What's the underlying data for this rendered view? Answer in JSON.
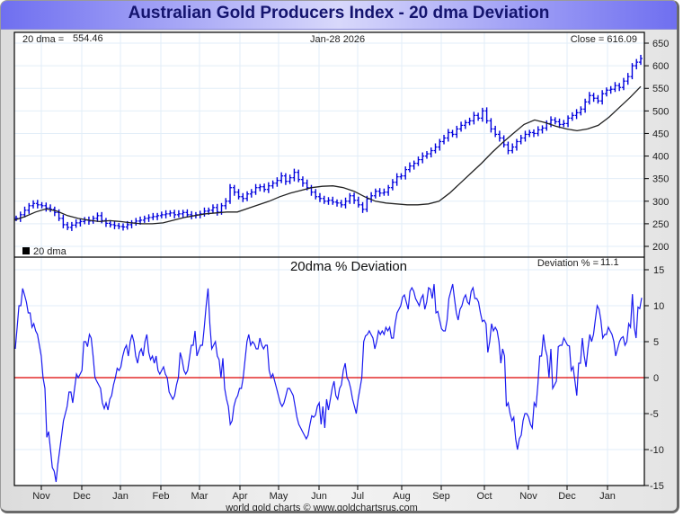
{
  "title": "Australian Gold Producers Index - 20 dma Deviation",
  "header": {
    "dma_label": "20 dma =",
    "dma_value": "554.46",
    "date": "Jan-28  2026",
    "close_label": "Close = 616.09"
  },
  "legend": {
    "label": "20 dma",
    "swatch_color": "#000000"
  },
  "deviation_panel": {
    "title": "20dma  %  Deviation",
    "readout_label": "Deviation % =",
    "readout_value": "11.1"
  },
  "footer": "world gold charts © www.goldchartsrus.com",
  "colors": {
    "price": "#0000dd",
    "dma": "#222222",
    "deviation": "#1a1af0",
    "zero_line": "#dd0000",
    "grid": "#e2eef8"
  },
  "chart_data": [
    {
      "type": "line",
      "title": "Australian Gold Producers Index",
      "ylabel": "",
      "ylim": [
        190,
        660
      ],
      "yticks": [
        200,
        250,
        300,
        350,
        400,
        450,
        500,
        550,
        600,
        650
      ],
      "x_tick_labels": [
        "Nov",
        "Dec",
        "Jan",
        "Feb",
        "Mar",
        "Apr",
        "May",
        "Jun",
        "Jul",
        "Aug",
        "Sep",
        "Oct",
        "Nov",
        "Dec",
        "Jan"
      ],
      "series": [
        {
          "name": "Close (bars)",
          "values": [
            262,
            270,
            280,
            290,
            295,
            292,
            290,
            285,
            282,
            275,
            262,
            248,
            242,
            247,
            252,
            255,
            258,
            256,
            262,
            268,
            257,
            251,
            248,
            246,
            244,
            243,
            248,
            252,
            256,
            258,
            262,
            264,
            266,
            268,
            270,
            272,
            274,
            270,
            272,
            275,
            270,
            268,
            270,
            272,
            278,
            280,
            286,
            276,
            290,
            300,
            330,
            320,
            310,
            306,
            316,
            320,
            330,
            332,
            326,
            334,
            340,
            346,
            356,
            344,
            352,
            364,
            348,
            340,
            330,
            320,
            310,
            306,
            300,
            302,
            298,
            296,
            292,
            300,
            312,
            302,
            292,
            282,
            305,
            312,
            322,
            318,
            320,
            330,
            342,
            354,
            356,
            370,
            378,
            384,
            392,
            400,
            405,
            412,
            420,
            432,
            440,
            452,
            448,
            460,
            468,
            474,
            478,
            490,
            484,
            500,
            478,
            460,
            448,
            440,
            425,
            412,
            420,
            432,
            440,
            448,
            452,
            450,
            458,
            462,
            472,
            480,
            476,
            470,
            472,
            484,
            490,
            496,
            504,
            520,
            534,
            528,
            522,
            538,
            546,
            548,
            556,
            552,
            566,
            576,
            600,
            608,
            616
          ]
        },
        {
          "name": "20 dma",
          "values": [
            258,
            266,
            276,
            283,
            278,
            268,
            262,
            258,
            255,
            257,
            255,
            252,
            250,
            250,
            252,
            258,
            264,
            268,
            272,
            274,
            276,
            276,
            284,
            292,
            300,
            310,
            318,
            324,
            330,
            333,
            334,
            330,
            322,
            310,
            300,
            296,
            294,
            292,
            292,
            294,
            300,
            318,
            340,
            362,
            384,
            408,
            430,
            450,
            470,
            480,
            474,
            466,
            460,
            456,
            460,
            468,
            486,
            508,
            530,
            554
          ]
        }
      ]
    },
    {
      "type": "line",
      "title": "20dma  %  Deviation",
      "ylim": [
        -15,
        15
      ],
      "yticks": [
        -15,
        -10,
        -5,
        0,
        5,
        10,
        15
      ],
      "x_tick_labels": [
        "Nov",
        "Dec",
        "Jan",
        "Feb",
        "Mar",
        "Apr",
        "May",
        "Jun",
        "Jul",
        "Aug",
        "Sep",
        "Oct",
        "Nov",
        "Dec",
        "Jan"
      ],
      "series": [
        {
          "name": "20dma % Deviation",
          "values": [
            4,
            7,
            10,
            10,
            12.4,
            11.5,
            10.5,
            9,
            9,
            7,
            7.5,
            6.5,
            6,
            4.5,
            3,
            0,
            -1.5,
            -8.3,
            -7.5,
            -10,
            -12.5,
            -13,
            -14.5,
            -12,
            -10,
            -8,
            -6,
            -5,
            -4,
            -2,
            -2,
            -3.5,
            -1.5,
            0.5,
            0,
            0.5,
            1,
            5,
            5,
            4.3,
            6,
            5.5,
            3,
            0,
            -0.5,
            -1,
            -1.5,
            -3.5,
            -4.3,
            -3.5,
            -4.5,
            -3,
            -2.5,
            -1,
            0,
            1.3,
            1,
            1.5,
            3,
            4,
            4.5,
            3,
            5,
            6,
            5,
            3,
            2,
            3.5,
            4,
            3,
            5,
            6,
            3.5,
            2.5,
            3,
            2,
            3,
            1,
            0.5,
            1,
            1.5,
            0.5,
            0,
            -2,
            -2.5,
            -3,
            -2.5,
            -1,
            0,
            3.5,
            2.5,
            1,
            0.5,
            1,
            2.7,
            4.5,
            4.5,
            6.5,
            3,
            3.8,
            4.5,
            4.5,
            7,
            10,
            12.4,
            7.5,
            4,
            4.5,
            5,
            3,
            2.5,
            0,
            2.7,
            -1.5,
            -3,
            -4,
            -6.5,
            -6,
            -4,
            -3,
            -2.5,
            -1.5,
            -1.5,
            0,
            2.5,
            5,
            6,
            4.5,
            5,
            4.7,
            4,
            4,
            5.5,
            4.5,
            4,
            4.5,
            4.5,
            1,
            0,
            0.5,
            -0.5,
            -1.5,
            -2.5,
            -3.5,
            -4,
            -3.5,
            -2.5,
            -1.5,
            -1.5,
            -2,
            -2.5,
            -4,
            -5.5,
            -6.5,
            -7,
            -7.5,
            -8,
            -8.5,
            -8,
            -6.5,
            -5.3,
            -5.5,
            -5.2,
            -4,
            -3.5,
            -6.5,
            -4,
            -7,
            -3,
            -4.5,
            -3,
            -1.5,
            -0.5,
            -2.5,
            -3,
            -1.5,
            -1,
            1,
            2,
            0,
            -0.5,
            -1.5,
            -3,
            -4,
            -5,
            -3,
            -1.5,
            0,
            5,
            5.8,
            6,
            6.5,
            6,
            5.5,
            4,
            5,
            6.5,
            6,
            6.5,
            6,
            7,
            6.5,
            7,
            5.5,
            5.5,
            7.5,
            9,
            9.5,
            10,
            11.2,
            11.5,
            10.5,
            9.5,
            12,
            12.5,
            12,
            11,
            10.5,
            10,
            11,
            11.5,
            9.5,
            10.5,
            12.5,
            12.3,
            11,
            13,
            9,
            9.2,
            8,
            6.8,
            6.5,
            6.5,
            8,
            11,
            12,
            13,
            11,
            9,
            8,
            9.5,
            10,
            11,
            11.5,
            10.5,
            10.2,
            12,
            12.5,
            11,
            11,
            10.5,
            9,
            7.8,
            8,
            7.5,
            3.5,
            5,
            7.5,
            6.5,
            7,
            6.5,
            5,
            2,
            4,
            3,
            -4,
            -3.5,
            -5,
            -6,
            -5.5,
            -8.5,
            -10,
            -8.5,
            -8,
            -6,
            -5,
            -5,
            -5.5,
            -6.5,
            -7,
            -3.5,
            -4,
            -1,
            3,
            3,
            6,
            4,
            3,
            0,
            4,
            -1.5,
            -1,
            -0.5,
            4.3,
            4.5,
            4.5,
            5.5,
            5,
            4.5,
            4.4,
            1,
            1.5,
            -0.5,
            -2.5,
            2,
            2,
            5.5,
            3,
            1.5,
            4,
            6,
            5,
            6,
            8,
            10,
            9.5,
            8,
            5.5,
            6,
            6,
            7,
            6.5,
            6,
            5,
            3,
            4,
            5,
            5.5,
            5.7,
            4.5,
            5,
            7.5,
            7,
            11.6,
            7,
            5.5,
            9.8,
            9.6,
            11.1
          ]
        }
      ]
    }
  ]
}
